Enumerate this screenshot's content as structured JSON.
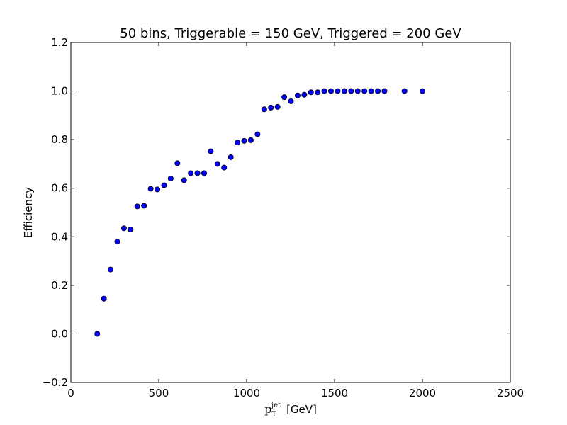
{
  "chart_data": {
    "type": "scatter",
    "title": "50 bins, Triggerable = 150 GeV, Triggered = 200 GeV",
    "xlabel": {
      "base": "p",
      "sub": "T",
      "sup": "jet",
      "unit": "[GeV]"
    },
    "ylabel": "Efficiency",
    "xlim": [
      0,
      2500
    ],
    "ylim": [
      -0.2,
      1.2
    ],
    "xticks": [
      0,
      500,
      1000,
      1500,
      2000,
      2500
    ],
    "xtick_labels": [
      "0",
      "500",
      "1000",
      "1500",
      "2000",
      "2500"
    ],
    "yticks": [
      -0.2,
      0.0,
      0.2,
      0.4,
      0.6,
      0.8,
      1.0,
      1.2
    ],
    "ytick_labels": [
      "−0.2",
      "0.0",
      "0.2",
      "0.4",
      "0.6",
      "0.8",
      "1.0",
      "1.2"
    ],
    "grid": false,
    "marker_color": "#0000ff",
    "marker_edge": "#000000",
    "x": [
      150,
      188,
      226,
      264,
      302,
      340,
      378,
      416,
      454,
      492,
      530,
      568,
      606,
      644,
      682,
      720,
      758,
      796,
      834,
      872,
      910,
      948,
      986,
      1024,
      1062,
      1100,
      1138,
      1176,
      1214,
      1252,
      1290,
      1328,
      1366,
      1404,
      1442,
      1480,
      1518,
      1556,
      1594,
      1632,
      1670,
      1708,
      1746,
      1784,
      1898,
      2000
    ],
    "y": [
      0.0,
      0.145,
      0.265,
      0.38,
      0.435,
      0.43,
      0.525,
      0.528,
      0.598,
      0.595,
      0.612,
      0.64,
      0.703,
      0.633,
      0.662,
      0.662,
      0.662,
      0.752,
      0.7,
      0.685,
      0.728,
      0.788,
      0.795,
      0.798,
      0.822,
      0.925,
      0.932,
      0.935,
      0.975,
      0.958,
      0.982,
      0.985,
      0.995,
      0.995,
      1.0,
      1.0,
      1.0,
      1.0,
      1.0,
      1.0,
      1.0,
      1.0,
      1.0,
      1.0,
      1.0,
      1.0
    ]
  }
}
